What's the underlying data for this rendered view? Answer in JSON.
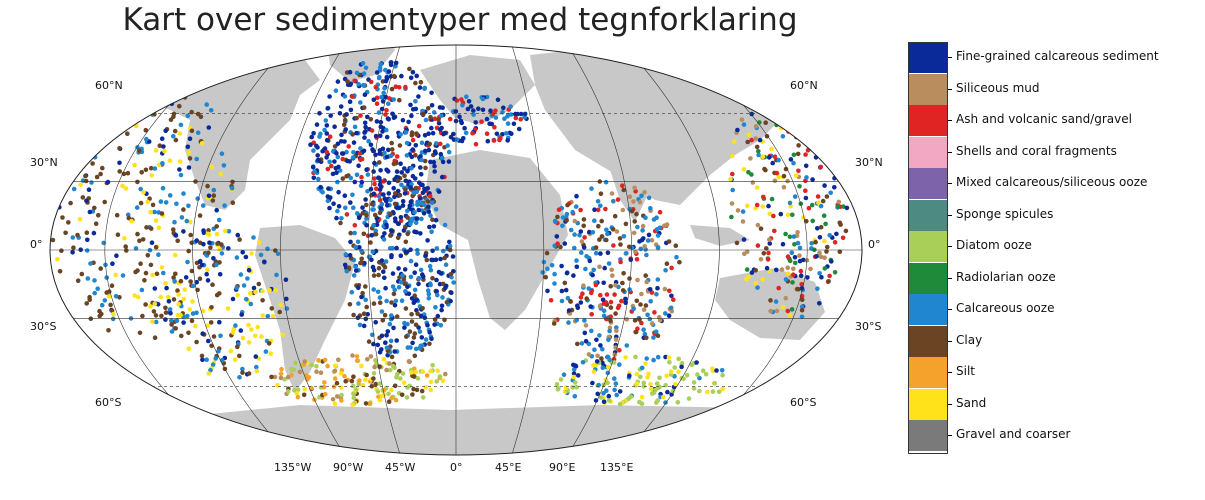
{
  "title": "Kart over sedimentyper med tegnforklaring",
  "map": {
    "projection": "Robinson",
    "ocean_color": "#ffffff",
    "land_color": "#c8c8c8",
    "lat_labels": [
      "60°N",
      "30°N",
      "0°",
      "30°S",
      "60°S"
    ],
    "lon_labels": [
      "135°W",
      "90°W",
      "45°W",
      "0°",
      "45°E",
      "90°E",
      "135°E"
    ]
  },
  "legend": {
    "items": [
      {
        "label": "Fine-grained calcareous sediment",
        "color": "#0a2a9a"
      },
      {
        "label": "Siliceous mud",
        "color": "#b98d5e"
      },
      {
        "label": "Ash and volcanic sand/gravel",
        "color": "#e02424"
      },
      {
        "label": "Shells and coral fragments",
        "color": "#f2a7c3"
      },
      {
        "label": "Mixed calcareous/siliceous ooze",
        "color": "#7d64aa"
      },
      {
        "label": "Sponge spicules",
        "color": "#4d8a82"
      },
      {
        "label": "Diatom ooze",
        "color": "#a9cf59"
      },
      {
        "label": "Radiolarian ooze",
        "color": "#1f8a3a"
      },
      {
        "label": "Calcareous ooze",
        "color": "#1f86cf"
      },
      {
        "label": "Clay",
        "color": "#6b4423"
      },
      {
        "label": "Silt",
        "color": "#f5a22d"
      },
      {
        "label": "Sand",
        "color": "#ffe21a"
      },
      {
        "label": "Gravel and coarser",
        "color": "#7a7a7a"
      }
    ]
  }
}
